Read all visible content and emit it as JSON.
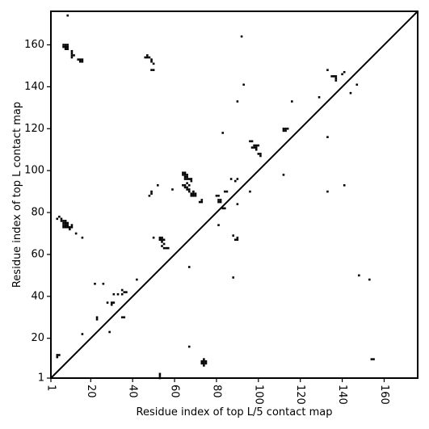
{
  "chart_data": {
    "type": "heatmap",
    "title": "",
    "xlabel": "Residue index of top L/5 contact map",
    "ylabel": "Residue index of top L contact map",
    "xlim": [
      1,
      176
    ],
    "ylim": [
      1,
      176
    ],
    "x_ticks": [
      1,
      20,
      40,
      60,
      80,
      100,
      120,
      140,
      160
    ],
    "y_ticks": [
      1,
      20,
      40,
      60,
      80,
      100,
      120,
      140,
      160
    ],
    "x_tick_labels": [
      "1",
      "20",
      "40",
      "60",
      "80",
      "100",
      "120",
      "140",
      "160"
    ],
    "y_tick_labels": [
      "1",
      "20",
      "40",
      "60",
      "80",
      "100",
      "120",
      "140",
      "160"
    ],
    "x_tick_rotation": -90,
    "diagonal": true,
    "grid": false,
    "cell_color": "#000000",
    "background": "#ffffff",
    "lower_triangle_contacts": [
      [
        53,
        1
      ],
      [
        53,
        2
      ],
      [
        53,
        3
      ],
      [
        73,
        8
      ],
      [
        74,
        8
      ],
      [
        75,
        8
      ],
      [
        73,
        9
      ],
      [
        74,
        9
      ],
      [
        75,
        9
      ],
      [
        74,
        7
      ],
      [
        74,
        10
      ],
      [
        67,
        16
      ],
      [
        29,
        23
      ],
      [
        23,
        29
      ],
      [
        23,
        30
      ],
      [
        16,
        22
      ],
      [
        36,
        30
      ],
      [
        35,
        30
      ],
      [
        30,
        36
      ],
      [
        31,
        37
      ],
      [
        28,
        37
      ],
      [
        30,
        37
      ],
      [
        31,
        41
      ],
      [
        33,
        41
      ],
      [
        35,
        41
      ],
      [
        37,
        42
      ],
      [
        36,
        42
      ],
      [
        35,
        43
      ],
      [
        22,
        46
      ],
      [
        26,
        46
      ],
      [
        42,
        48
      ],
      [
        88,
        49
      ],
      [
        148,
        50
      ],
      [
        153,
        48
      ],
      [
        67,
        54
      ],
      [
        4,
        11
      ],
      [
        5,
        12
      ],
      [
        4,
        12
      ],
      [
        155,
        10
      ],
      [
        154,
        10
      ],
      [
        55,
        63
      ],
      [
        56,
        63
      ],
      [
        57,
        63
      ],
      [
        54,
        64
      ],
      [
        55,
        65
      ],
      [
        54,
        66
      ],
      [
        53,
        67
      ],
      [
        54,
        67
      ],
      [
        55,
        67
      ],
      [
        54,
        68
      ],
      [
        53,
        68
      ],
      [
        50,
        68
      ],
      [
        16,
        68
      ],
      [
        89,
        67
      ],
      [
        90,
        67
      ],
      [
        90,
        68
      ],
      [
        88,
        69
      ],
      [
        13,
        70
      ],
      [
        81,
        74
      ],
      [
        90,
        84
      ],
      [
        83,
        82
      ],
      [
        84,
        82
      ],
      [
        81,
        85
      ],
      [
        82,
        85
      ],
      [
        81,
        86
      ],
      [
        82,
        86
      ],
      [
        80,
        88
      ],
      [
        81,
        88
      ],
      [
        84,
        90
      ],
      [
        85,
        90
      ],
      [
        72,
        85
      ],
      [
        73,
        85
      ],
      [
        73,
        86
      ],
      [
        68,
        88
      ],
      [
        69,
        88
      ],
      [
        70,
        88
      ],
      [
        68,
        89
      ],
      [
        69,
        89
      ],
      [
        70,
        89
      ],
      [
        69,
        90
      ],
      [
        67,
        90
      ],
      [
        66,
        91
      ],
      [
        67,
        91
      ],
      [
        66,
        92
      ],
      [
        65,
        92
      ],
      [
        65,
        93
      ],
      [
        64,
        93
      ],
      [
        67,
        93
      ],
      [
        66,
        94
      ],
      [
        68,
        95
      ],
      [
        68,
        96
      ],
      [
        65,
        96
      ],
      [
        66,
        96
      ],
      [
        67,
        96
      ],
      [
        65,
        97
      ],
      [
        66,
        97
      ],
      [
        64,
        98
      ],
      [
        65,
        98
      ],
      [
        66,
        98
      ],
      [
        64,
        99
      ],
      [
        65,
        99
      ],
      [
        48,
        88
      ],
      [
        49,
        89
      ],
      [
        49,
        90
      ],
      [
        52,
        93
      ],
      [
        59,
        91
      ],
      [
        96,
        90
      ],
      [
        87,
        96
      ],
      [
        89,
        95
      ],
      [
        90,
        96
      ],
      [
        133,
        90
      ],
      [
        141,
        93
      ],
      [
        112,
        98
      ]
    ],
    "upper_triangle_contacts": [
      [
        7,
        74
      ],
      [
        8,
        74
      ],
      [
        9,
        74
      ],
      [
        7,
        75
      ],
      [
        8,
        75
      ],
      [
        9,
        75
      ],
      [
        7,
        73
      ],
      [
        8,
        73
      ],
      [
        9,
        73
      ],
      [
        10,
        73
      ],
      [
        11,
        73
      ],
      [
        11,
        74
      ],
      [
        6,
        76
      ],
      [
        7,
        76
      ],
      [
        8,
        76
      ],
      [
        6,
        77
      ],
      [
        5,
        78
      ],
      [
        4,
        77
      ],
      [
        10,
        72
      ],
      [
        8,
        158
      ],
      [
        9,
        158
      ],
      [
        7,
        159
      ],
      [
        8,
        159
      ],
      [
        9,
        159
      ],
      [
        7,
        160
      ],
      [
        8,
        160
      ],
      [
        9,
        160
      ],
      [
        11,
        154
      ],
      [
        11,
        155
      ],
      [
        12,
        155
      ],
      [
        11,
        156
      ],
      [
        11,
        157
      ],
      [
        15,
        152
      ],
      [
        16,
        152
      ],
      [
        14,
        153
      ],
      [
        15,
        153
      ],
      [
        16,
        153
      ],
      [
        9,
        174
      ],
      [
        46,
        154
      ],
      [
        47,
        154
      ],
      [
        47,
        155
      ],
      [
        48,
        154
      ],
      [
        49,
        153
      ],
      [
        49,
        152
      ],
      [
        50,
        151
      ],
      [
        49,
        148
      ],
      [
        50,
        148
      ],
      [
        92,
        164
      ],
      [
        93,
        141
      ],
      [
        90,
        133
      ],
      [
        83,
        118
      ],
      [
        112,
        119
      ],
      [
        113,
        119
      ],
      [
        112,
        120
      ],
      [
        113,
        120
      ],
      [
        114,
        120
      ],
      [
        116,
        133
      ],
      [
        129,
        135
      ],
      [
        133,
        148
      ],
      [
        135,
        145
      ],
      [
        136,
        145
      ],
      [
        137,
        145
      ],
      [
        137,
        143
      ],
      [
        137,
        144
      ],
      [
        140,
        146
      ],
      [
        141,
        147
      ],
      [
        144,
        137
      ],
      [
        147,
        141
      ],
      [
        97,
        114
      ],
      [
        96,
        114
      ],
      [
        97,
        111
      ],
      [
        98,
        111
      ],
      [
        99,
        111
      ],
      [
        98,
        112
      ],
      [
        99,
        112
      ],
      [
        100,
        112
      ],
      [
        99,
        110
      ],
      [
        100,
        108
      ],
      [
        101,
        107
      ],
      [
        101,
        108
      ],
      [
        133,
        116
      ]
    ]
  }
}
